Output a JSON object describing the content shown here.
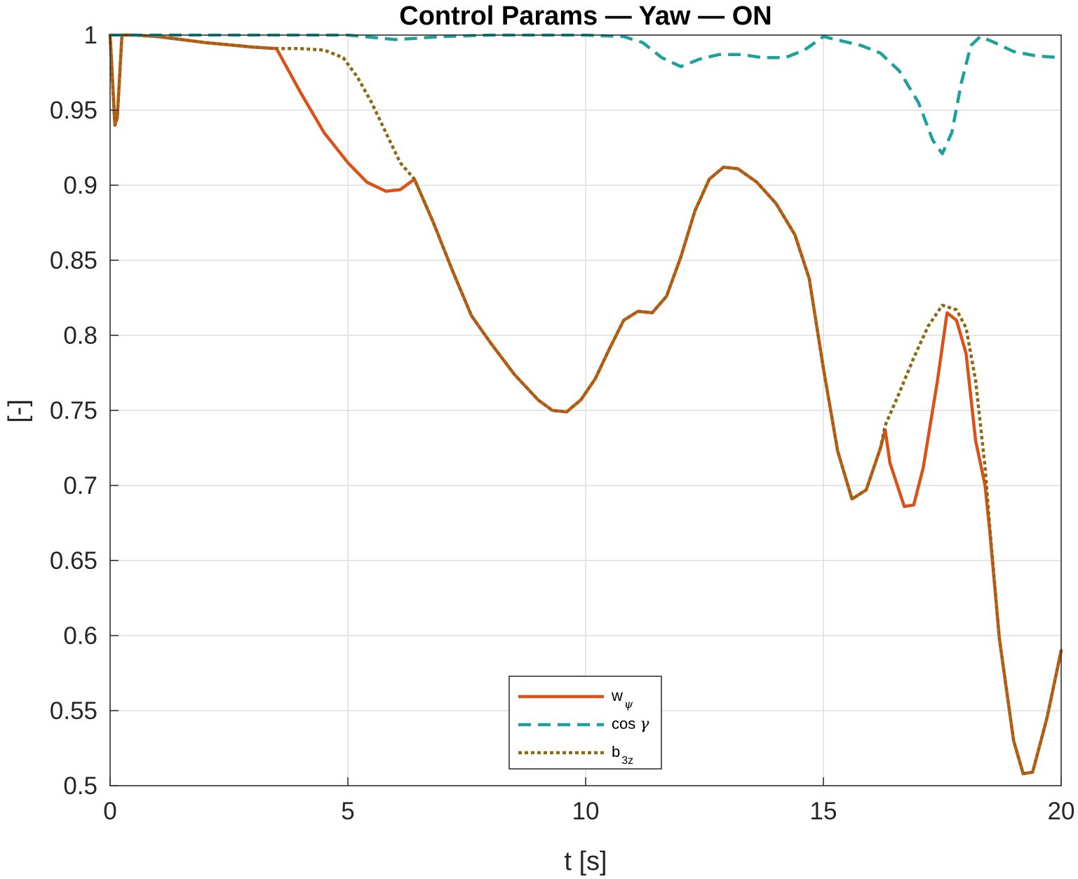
{
  "chart_data": {
    "type": "line",
    "title": "Control Params — Yaw — ON",
    "xlabel": "t [s]",
    "ylabel": "[-]",
    "xlim": [
      0,
      20
    ],
    "ylim": [
      0.5,
      1
    ],
    "xticks": [
      0,
      5,
      10,
      15,
      20
    ],
    "yticks": [
      0.5,
      0.55,
      0.6,
      0.65,
      0.7,
      0.75,
      0.8,
      0.85,
      0.9,
      0.95,
      1
    ],
    "grid": true,
    "legend_position": "bottom-center",
    "series": [
      {
        "name": "w_ψ",
        "legend_main": "w",
        "legend_sub": "ψ",
        "color": "#D95319",
        "style": "solid",
        "points": [
          [
            0,
            1.0
          ],
          [
            0.1,
            0.94
          ],
          [
            0.15,
            0.945
          ],
          [
            0.25,
            1.0
          ],
          [
            0.5,
            1.0
          ],
          [
            1.0,
            0.999
          ],
          [
            2.0,
            0.995
          ],
          [
            3.0,
            0.992
          ],
          [
            3.5,
            0.991
          ],
          [
            4.0,
            0.962
          ],
          [
            4.5,
            0.935
          ],
          [
            5.0,
            0.915
          ],
          [
            5.4,
            0.902
          ],
          [
            5.8,
            0.896
          ],
          [
            6.1,
            0.897
          ],
          [
            6.4,
            0.904
          ],
          [
            6.8,
            0.875
          ],
          [
            7.2,
            0.843
          ],
          [
            7.6,
            0.813
          ],
          [
            8.0,
            0.795
          ],
          [
            8.5,
            0.774
          ],
          [
            9.0,
            0.757
          ],
          [
            9.3,
            0.75
          ],
          [
            9.6,
            0.749
          ],
          [
            9.9,
            0.757
          ],
          [
            10.2,
            0.771
          ],
          [
            10.5,
            0.791
          ],
          [
            10.8,
            0.81
          ],
          [
            11.1,
            0.816
          ],
          [
            11.4,
            0.815
          ],
          [
            11.7,
            0.826
          ],
          [
            12.0,
            0.852
          ],
          [
            12.3,
            0.883
          ],
          [
            12.6,
            0.904
          ],
          [
            12.9,
            0.912
          ],
          [
            13.2,
            0.911
          ],
          [
            13.6,
            0.902
          ],
          [
            14.0,
            0.888
          ],
          [
            14.4,
            0.867
          ],
          [
            14.7,
            0.838
          ],
          [
            15.0,
            0.778
          ],
          [
            15.3,
            0.723
          ],
          [
            15.6,
            0.691
          ],
          [
            15.9,
            0.697
          ],
          [
            16.2,
            0.725
          ],
          [
            16.3,
            0.737
          ],
          [
            16.4,
            0.715
          ],
          [
            16.7,
            0.686
          ],
          [
            16.9,
            0.687
          ],
          [
            17.1,
            0.712
          ],
          [
            17.4,
            0.77
          ],
          [
            17.6,
            0.815
          ],
          [
            17.8,
            0.81
          ],
          [
            18.0,
            0.788
          ],
          [
            18.2,
            0.73
          ],
          [
            18.4,
            0.7
          ],
          [
            18.5,
            0.669
          ],
          [
            18.7,
            0.598
          ],
          [
            19.0,
            0.53
          ],
          [
            19.2,
            0.508
          ],
          [
            19.4,
            0.509
          ],
          [
            19.7,
            0.545
          ],
          [
            20.0,
            0.59
          ]
        ]
      },
      {
        "name": "cos γ",
        "legend_main": "cos",
        "legend_sub": "γ",
        "color": "#20A09A",
        "style": "dashed",
        "points": [
          [
            0,
            1.0
          ],
          [
            2.0,
            1.0
          ],
          [
            5.0,
            1.0
          ],
          [
            6.0,
            0.997
          ],
          [
            7.0,
            0.999
          ],
          [
            8.0,
            1.0
          ],
          [
            10.0,
            1.0
          ],
          [
            10.8,
            0.999
          ],
          [
            11.2,
            0.995
          ],
          [
            11.6,
            0.985
          ],
          [
            12.0,
            0.979
          ],
          [
            12.4,
            0.984
          ],
          [
            12.8,
            0.987
          ],
          [
            13.3,
            0.987
          ],
          [
            13.7,
            0.985
          ],
          [
            14.2,
            0.985
          ],
          [
            14.6,
            0.99
          ],
          [
            15.0,
            0.999
          ],
          [
            15.4,
            0.996
          ],
          [
            15.8,
            0.993
          ],
          [
            16.2,
            0.988
          ],
          [
            16.6,
            0.976
          ],
          [
            17.0,
            0.955
          ],
          [
            17.3,
            0.93
          ],
          [
            17.5,
            0.921
          ],
          [
            17.7,
            0.935
          ],
          [
            17.9,
            0.968
          ],
          [
            18.1,
            0.993
          ],
          [
            18.3,
            0.999
          ],
          [
            18.6,
            0.995
          ],
          [
            19.0,
            0.989
          ],
          [
            19.5,
            0.986
          ],
          [
            20.0,
            0.985
          ]
        ]
      },
      {
        "name": "b_3z",
        "legend_main": "b",
        "legend_sub": "3z",
        "color": "#8C6A14",
        "style": "dotted",
        "points": [
          [
            0,
            1.0
          ],
          [
            0.1,
            0.94
          ],
          [
            0.15,
            0.945
          ],
          [
            0.25,
            1.0
          ],
          [
            0.5,
            1.0
          ],
          [
            1.0,
            0.999
          ],
          [
            2.0,
            0.995
          ],
          [
            3.0,
            0.992
          ],
          [
            3.5,
            0.991
          ],
          [
            4.0,
            0.991
          ],
          [
            4.5,
            0.99
          ],
          [
            4.9,
            0.985
          ],
          [
            5.2,
            0.972
          ],
          [
            5.5,
            0.955
          ],
          [
            5.8,
            0.935
          ],
          [
            6.1,
            0.915
          ],
          [
            6.4,
            0.904
          ],
          [
            6.8,
            0.875
          ],
          [
            7.2,
            0.843
          ],
          [
            7.6,
            0.813
          ],
          [
            8.0,
            0.795
          ],
          [
            8.5,
            0.774
          ],
          [
            9.0,
            0.757
          ],
          [
            9.3,
            0.75
          ],
          [
            9.6,
            0.749
          ],
          [
            9.9,
            0.757
          ],
          [
            10.2,
            0.771
          ],
          [
            10.5,
            0.791
          ],
          [
            10.8,
            0.81
          ],
          [
            11.1,
            0.816
          ],
          [
            11.4,
            0.815
          ],
          [
            11.7,
            0.826
          ],
          [
            12.0,
            0.852
          ],
          [
            12.3,
            0.883
          ],
          [
            12.6,
            0.904
          ],
          [
            12.9,
            0.912
          ],
          [
            13.2,
            0.911
          ],
          [
            13.6,
            0.902
          ],
          [
            14.0,
            0.888
          ],
          [
            14.4,
            0.867
          ],
          [
            14.7,
            0.838
          ],
          [
            15.0,
            0.778
          ],
          [
            15.3,
            0.723
          ],
          [
            15.6,
            0.691
          ],
          [
            15.9,
            0.697
          ],
          [
            16.2,
            0.725
          ],
          [
            16.3,
            0.74
          ],
          [
            16.6,
            0.762
          ],
          [
            16.9,
            0.785
          ],
          [
            17.2,
            0.806
          ],
          [
            17.5,
            0.82
          ],
          [
            17.8,
            0.817
          ],
          [
            18.0,
            0.805
          ],
          [
            18.2,
            0.77
          ],
          [
            18.4,
            0.712
          ],
          [
            18.5,
            0.672
          ],
          [
            18.7,
            0.598
          ],
          [
            19.0,
            0.53
          ],
          [
            19.2,
            0.508
          ],
          [
            19.4,
            0.509
          ],
          [
            19.7,
            0.545
          ],
          [
            20.0,
            0.59
          ]
        ]
      }
    ]
  }
}
